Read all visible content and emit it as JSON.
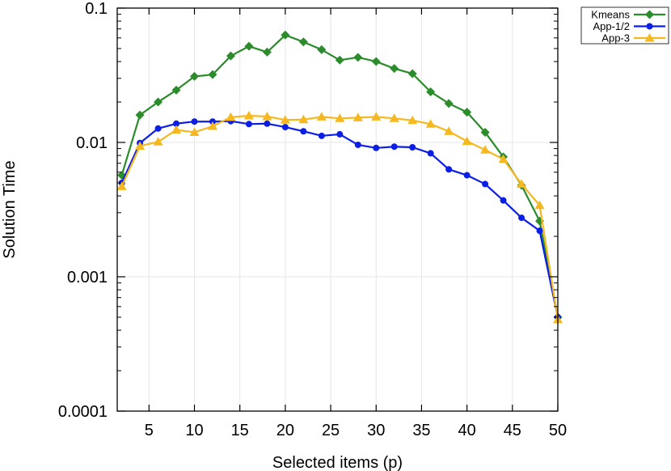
{
  "chart_data": {
    "type": "line",
    "xlabel": "Selected items (p)",
    "ylabel": "Solution Time",
    "xlim": [
      1.5,
      50
    ],
    "ylim": [
      0.0001,
      0.1
    ],
    "yscale": "log",
    "xticks": [
      5,
      10,
      15,
      20,
      25,
      30,
      35,
      40,
      45,
      50
    ],
    "xtick_labels": [
      "5",
      "10",
      "15",
      "20",
      "25",
      "30",
      "35",
      "40",
      "45",
      "50"
    ],
    "yticks": [
      0.0001,
      0.001,
      0.01,
      0.1
    ],
    "ytick_labels": [
      "0.0001",
      "0.001",
      "0.01",
      "0.1"
    ],
    "grid": true,
    "legend_position": "outside-top-right",
    "x": [
      2,
      4,
      6,
      8,
      10,
      12,
      14,
      16,
      18,
      20,
      22,
      24,
      26,
      28,
      30,
      32,
      34,
      36,
      38,
      40,
      42,
      44,
      46,
      48,
      50
    ],
    "series": [
      {
        "name": "Kmeans",
        "color": "#2a8c2a",
        "marker": "diamond",
        "values": [
          0.0057,
          0.016,
          0.02,
          0.0245,
          0.031,
          0.032,
          0.044,
          0.052,
          0.047,
          0.063,
          0.056,
          0.049,
          0.041,
          0.043,
          0.04,
          0.0355,
          0.0325,
          0.0238,
          0.0195,
          0.0168,
          0.0119,
          0.0078,
          0.0048,
          0.0026,
          0.0005
        ]
      },
      {
        "name": "App-1/2",
        "color": "#0a1ee6",
        "marker": "circle",
        "values": [
          0.005,
          0.0099,
          0.0127,
          0.0138,
          0.0143,
          0.0143,
          0.0144,
          0.0137,
          0.0138,
          0.013,
          0.0121,
          0.0112,
          0.0115,
          0.0096,
          0.0091,
          0.0093,
          0.0092,
          0.0083,
          0.0063,
          0.0057,
          0.0049,
          0.0037,
          0.00275,
          0.0022,
          0.0005
        ]
      },
      {
        "name": "App-3",
        "color": "#f5b820",
        "marker": "triangle",
        "values": [
          0.0047,
          0.0094,
          0.0101,
          0.0124,
          0.0119,
          0.0132,
          0.0154,
          0.0158,
          0.0156,
          0.0147,
          0.0148,
          0.0155,
          0.0151,
          0.0153,
          0.0155,
          0.0151,
          0.0146,
          0.0137,
          0.0121,
          0.0102,
          0.0088,
          0.0075,
          0.0049,
          0.0034,
          0.00048
        ]
      }
    ]
  }
}
